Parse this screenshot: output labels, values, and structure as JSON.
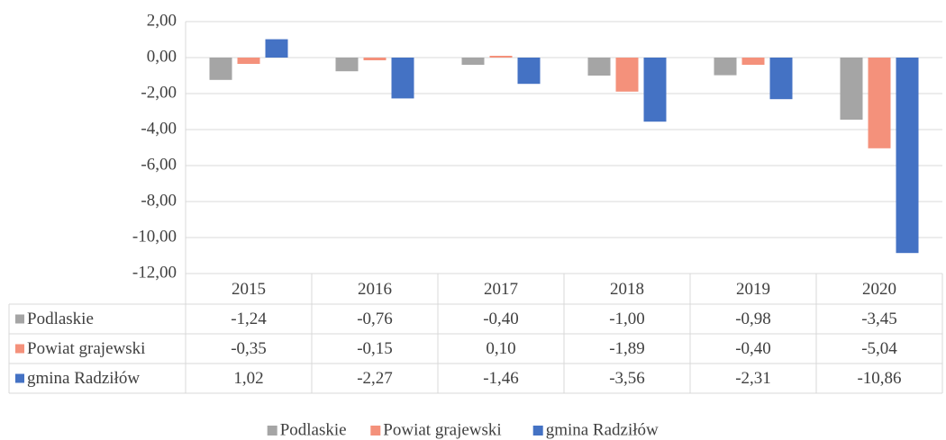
{
  "chart_data": {
    "type": "bar",
    "categories": [
      "2015",
      "2016",
      "2017",
      "2018",
      "2019",
      "2020"
    ],
    "series": [
      {
        "name": "Podlaskie",
        "color": "#a5a5a5",
        "values": [
          -1.24,
          -0.76,
          -0.4,
          -1.0,
          -0.98,
          -3.45
        ],
        "value_labels": [
          "-1,24",
          "-0,76",
          "-0,40",
          "-1,00",
          "-0,98",
          "-3,45"
        ]
      },
      {
        "name": "Powiat grajewski",
        "color": "#f4917b",
        "values": [
          -0.35,
          -0.15,
          0.1,
          -1.89,
          -0.4,
          -5.04
        ],
        "value_labels": [
          "-0,35",
          "-0,15",
          "0,10",
          "-1,89",
          "-0,40",
          "-5,04"
        ]
      },
      {
        "name": "gmina Radziłów",
        "color": "#4472c4",
        "values": [
          1.02,
          -2.27,
          -1.46,
          -3.56,
          -2.31,
          -10.86
        ],
        "value_labels": [
          "1,02",
          "-2,27",
          "-1,46",
          "-3,56",
          "-2,31",
          "-10,86"
        ]
      }
    ],
    "ylim": [
      -12,
      2
    ],
    "yticks": [
      {
        "value": -12,
        "label": "-12,00"
      },
      {
        "value": -10,
        "label": "-10,00"
      },
      {
        "value": -8,
        "label": "-8,00"
      },
      {
        "value": -6,
        "label": "-6,00"
      },
      {
        "value": -4,
        "label": "-4,00"
      },
      {
        "value": -2,
        "label": "-2,00"
      },
      {
        "value": 0,
        "label": "0,00"
      },
      {
        "value": 2,
        "label": "2,00"
      }
    ],
    "grid": true,
    "legend": "bottom"
  }
}
